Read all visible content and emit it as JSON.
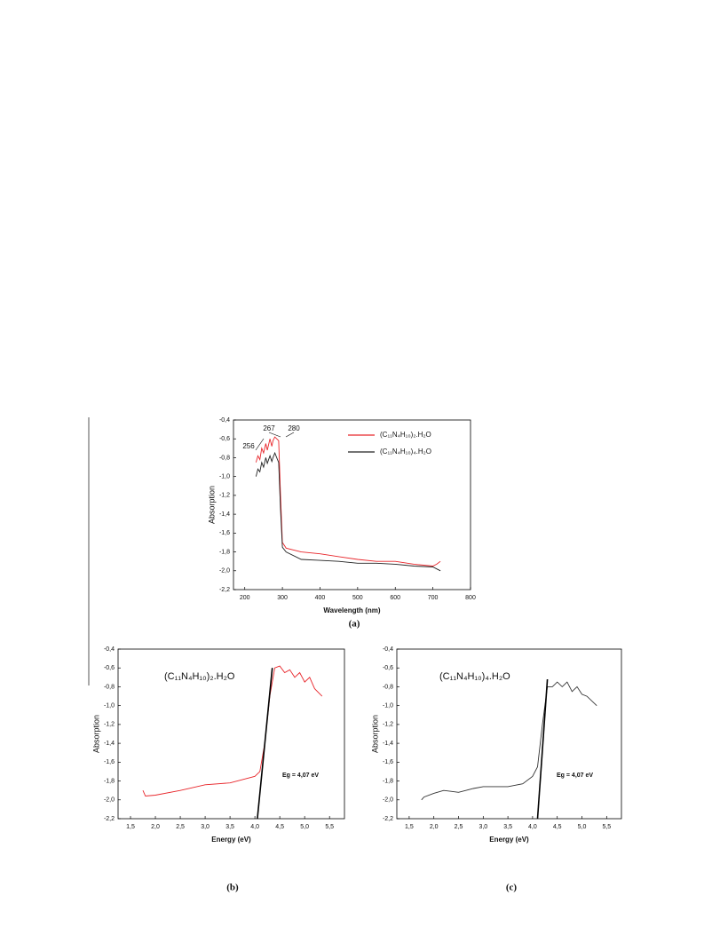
{
  "chart_data": [
    {
      "type": "line",
      "ylabel": "Absorption",
      "xlabel": "Wavelength (nm)",
      "caption": "(a)",
      "annotations": [
        "267",
        "280",
        "256"
      ],
      "legend": "upper right",
      "xlim": [
        170,
        800
      ],
      "xticks": [
        200,
        300,
        400,
        500,
        600,
        700,
        800
      ],
      "ylim": [
        -2.2,
        -0.4
      ],
      "yticks": [
        {
          "value": -0.4,
          "label": "-0,4"
        },
        {
          "value": -0.6,
          "label": "-0,6"
        },
        {
          "value": -0.8,
          "label": "-0,8"
        },
        {
          "value": -1.0,
          "label": "-1,0"
        },
        {
          "value": -1.2,
          "label": "-1,2"
        },
        {
          "value": -1.4,
          "label": "-1,4"
        },
        {
          "value": -1.6,
          "label": "-1,6"
        },
        {
          "value": -1.8,
          "label": "-1,8"
        },
        {
          "value": -2.0,
          "label": "-2,0"
        },
        {
          "value": -2.2,
          "label": "-2,2"
        }
      ],
      "series": [
        {
          "name": "(C₁₁N₄H₁₀)₂.H₂O",
          "color": "#e8262b",
          "x": [
            230,
            235,
            240,
            245,
            250,
            256,
            260,
            267,
            272,
            275,
            280,
            285,
            290,
            295,
            300,
            310,
            350,
            400,
            450,
            500,
            550,
            600,
            650,
            700,
            710,
            720
          ],
          "values": [
            -0.85,
            -0.78,
            -0.82,
            -0.7,
            -0.75,
            -0.65,
            -0.72,
            -0.6,
            -0.68,
            -0.62,
            -0.58,
            -0.6,
            -0.62,
            -1.2,
            -1.7,
            -1.76,
            -1.8,
            -1.82,
            -1.85,
            -1.88,
            -1.9,
            -1.9,
            -1.93,
            -1.95,
            -1.93,
            -1.9
          ]
        },
        {
          "name": "(C₁₁N₄H₁₀)₄.H₂O",
          "color": "#222222",
          "x": [
            230,
            235,
            240,
            245,
            250,
            256,
            260,
            267,
            272,
            275,
            280,
            285,
            290,
            295,
            300,
            310,
            350,
            400,
            450,
            500,
            550,
            600,
            650,
            700,
            710,
            720
          ],
          "values": [
            -1.0,
            -0.92,
            -0.95,
            -0.85,
            -0.9,
            -0.8,
            -0.86,
            -0.78,
            -0.84,
            -0.8,
            -0.75,
            -0.8,
            -0.85,
            -1.35,
            -1.75,
            -1.8,
            -1.88,
            -1.89,
            -1.9,
            -1.92,
            -1.92,
            -1.93,
            -1.95,
            -1.96,
            -1.98,
            -2.0
          ]
        }
      ]
    },
    {
      "type": "line",
      "ylabel": "Absorption",
      "xlabel": "Energy (eV)",
      "caption": "(b)",
      "label": "(C₁₁N₄H₁₀)₂.H₂O",
      "annotation": "Eg = 4,07 eV",
      "xlim": [
        1.25,
        5.8
      ],
      "xticks": [
        {
          "value": 1.5,
          "label": "1,5"
        },
        {
          "value": 2.0,
          "label": "2,0"
        },
        {
          "value": 2.5,
          "label": "2,5"
        },
        {
          "value": 3.0,
          "label": "3,0"
        },
        {
          "value": 3.5,
          "label": "3,5"
        },
        {
          "value": 4.0,
          "label": "4,0"
        },
        {
          "value": 4.5,
          "label": "4,5"
        },
        {
          "value": 5.0,
          "label": "5,0"
        },
        {
          "value": 5.5,
          "label": "5,5"
        }
      ],
      "ylim": [
        -2.2,
        -0.4
      ],
      "yticks": [
        {
          "value": -0.4,
          "label": "-0,4"
        },
        {
          "value": -0.6,
          "label": "-0,6"
        },
        {
          "value": -0.8,
          "label": "-0,8"
        },
        {
          "value": -1.0,
          "label": "-1,0"
        },
        {
          "value": -1.2,
          "label": "-1,2"
        },
        {
          "value": -1.4,
          "label": "-1,4"
        },
        {
          "value": -1.6,
          "label": "-1,6"
        },
        {
          "value": -1.8,
          "label": "-1,8"
        },
        {
          "value": -2.0,
          "label": "-2,0"
        },
        {
          "value": -2.2,
          "label": "-2,2"
        }
      ],
      "series": [
        {
          "color": "#e8262b",
          "x": [
            1.75,
            1.8,
            2.0,
            2.5,
            3.0,
            3.5,
            4.0,
            4.1,
            4.2,
            4.3,
            4.4,
            4.5,
            4.6,
            4.7,
            4.8,
            4.9,
            5.0,
            5.1,
            5.2,
            5.35
          ],
          "values": [
            -1.9,
            -1.96,
            -1.95,
            -1.9,
            -1.84,
            -1.82,
            -1.75,
            -1.7,
            -1.4,
            -0.9,
            -0.6,
            -0.58,
            -0.65,
            -0.62,
            -0.7,
            -0.65,
            -0.75,
            -0.7,
            -0.82,
            -0.9
          ]
        },
        {
          "color": "#000000",
          "x": [
            4.05,
            4.35
          ],
          "values": [
            -2.2,
            -0.6
          ]
        }
      ]
    },
    {
      "type": "line",
      "ylabel": "Absorption",
      "xlabel": "Energy (eV)",
      "caption": "(c)",
      "label": "(C₁₁N₄H₁₀)₄.H₂O",
      "annotation": "Eg = 4,07 eV",
      "xlim": [
        1.25,
        5.8
      ],
      "xticks": [
        {
          "value": 1.5,
          "label": "1,5"
        },
        {
          "value": 2.0,
          "label": "2,0"
        },
        {
          "value": 2.5,
          "label": "2,5"
        },
        {
          "value": 3.0,
          "label": "3,0"
        },
        {
          "value": 3.5,
          "label": "3,5"
        },
        {
          "value": 4.0,
          "label": "4,0"
        },
        {
          "value": 4.5,
          "label": "4,5"
        },
        {
          "value": 5.0,
          "label": "5,0"
        },
        {
          "value": 5.5,
          "label": "5,5"
        }
      ],
      "ylim": [
        -2.2,
        -0.4
      ],
      "yticks": [
        {
          "value": -0.4,
          "label": "-0,4"
        },
        {
          "value": -0.6,
          "label": "-0,6"
        },
        {
          "value": -0.8,
          "label": "-0,8"
        },
        {
          "value": -1.0,
          "label": "-1,0"
        },
        {
          "value": -1.2,
          "label": "-1,2"
        },
        {
          "value": -1.4,
          "label": "-1,4"
        },
        {
          "value": -1.6,
          "label": "-1,6"
        },
        {
          "value": -1.8,
          "label": "-1,8"
        },
        {
          "value": -2.0,
          "label": "-2,0"
        },
        {
          "value": -2.2,
          "label": "-2,2"
        }
      ],
      "series": [
        {
          "color": "#333333",
          "x": [
            1.75,
            1.8,
            2.0,
            2.2,
            2.5,
            2.8,
            3.0,
            3.5,
            3.8,
            4.0,
            4.1,
            4.2,
            4.3,
            4.4,
            4.5,
            4.6,
            4.7,
            4.8,
            4.9,
            5.0,
            5.1,
            5.3
          ],
          "values": [
            -2.0,
            -1.97,
            -1.93,
            -1.9,
            -1.92,
            -1.88,
            -1.86,
            -1.86,
            -1.83,
            -1.75,
            -1.65,
            -1.2,
            -0.8,
            -0.8,
            -0.75,
            -0.8,
            -0.75,
            -0.85,
            -0.8,
            -0.88,
            -0.9,
            -1.0
          ]
        },
        {
          "color": "#000000",
          "x": [
            4.1,
            4.3
          ],
          "values": [
            -2.2,
            -0.72
          ]
        }
      ]
    }
  ]
}
